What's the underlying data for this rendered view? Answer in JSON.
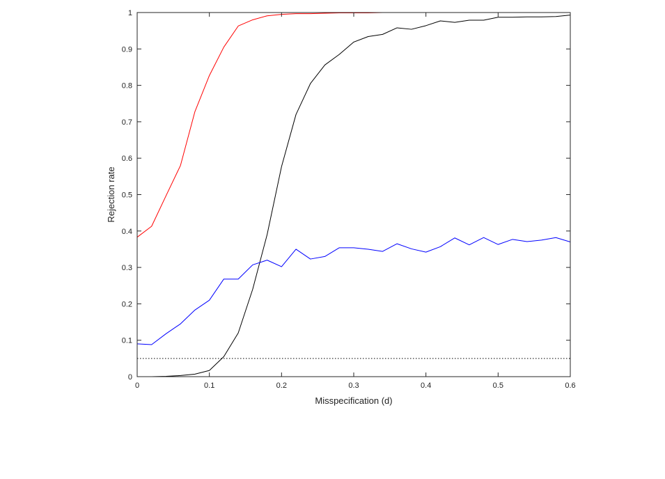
{
  "chart_data": {
    "type": "line",
    "title": "",
    "xlabel": "Misspecification (d)",
    "ylabel": "Rejection rate",
    "xlim": [
      0,
      0.6
    ],
    "ylim": [
      0,
      1
    ],
    "xticks": [
      0,
      0.1,
      0.2,
      0.3,
      0.4,
      0.5,
      0.6
    ],
    "xtick_labels": [
      "0",
      "0.1",
      "0.2",
      "0.3",
      "0.4",
      "0.5",
      "0.6"
    ],
    "yticks": [
      0,
      0.1,
      0.2,
      0.3,
      0.4,
      0.5,
      0.6,
      0.7,
      0.8,
      0.9,
      1
    ],
    "ytick_labels": [
      "0",
      "0.1",
      "0.2",
      "0.3",
      "0.4",
      "0.5",
      "0.6",
      "0.7",
      "0.8",
      "0.9",
      "1"
    ],
    "grid": false,
    "legend": "none",
    "x": [
      0,
      0.02,
      0.04,
      0.06,
      0.08,
      0.1,
      0.12,
      0.14,
      0.16,
      0.18,
      0.2,
      0.22,
      0.24,
      0.26,
      0.28,
      0.3,
      0.32,
      0.34,
      0.36,
      0.38,
      0.4,
      0.42,
      0.44,
      0.46,
      0.48,
      0.5,
      0.52,
      0.54,
      0.56,
      0.58,
      0.6
    ],
    "series": [
      {
        "color": "#ff0000",
        "values": [
          0.383,
          0.413,
          0.497,
          0.58,
          0.728,
          0.827,
          0.905,
          0.963,
          0.98,
          0.991,
          0.995,
          0.997,
          0.997,
          0.998,
          0.999,
          0.999,
          0.999,
          1.0,
          1.0,
          1.0,
          1.0,
          1.0,
          1.0,
          1.0,
          1.0,
          1.0,
          1.0,
          1.0,
          1.0,
          1.0,
          1.0
        ]
      },
      {
        "color": "#000000",
        "values": [
          0.0,
          0.0,
          0.001,
          0.003,
          0.007,
          0.017,
          0.055,
          0.12,
          0.24,
          0.39,
          0.577,
          0.72,
          0.805,
          0.856,
          0.885,
          0.919,
          0.934,
          0.94,
          0.958,
          0.954,
          0.964,
          0.977,
          0.973,
          0.979,
          0.979,
          0.987,
          0.987,
          0.988,
          0.988,
          0.989,
          0.993
        ]
      },
      {
        "color": "#0000ff",
        "values": [
          0.09,
          0.088,
          0.118,
          0.145,
          0.183,
          0.21,
          0.268,
          0.268,
          0.307,
          0.32,
          0.302,
          0.35,
          0.323,
          0.33,
          0.354,
          0.354,
          0.35,
          0.344,
          0.365,
          0.351,
          0.342,
          0.357,
          0.381,
          0.362,
          0.382,
          0.363,
          0.377,
          0.371,
          0.375,
          0.382,
          0.37
        ]
      }
    ],
    "reference_line": {
      "y": 0.05,
      "style": "dotted",
      "color": "#000000"
    }
  }
}
